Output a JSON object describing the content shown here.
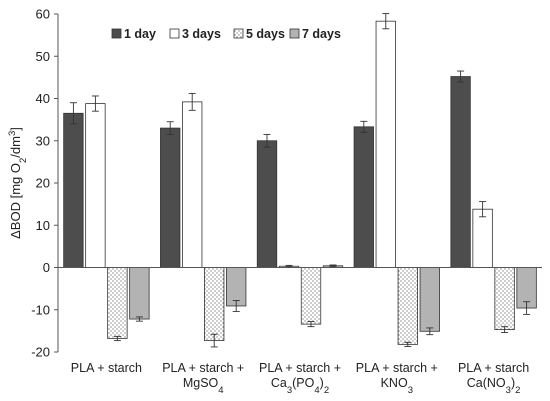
{
  "chart_data": {
    "type": "bar",
    "categories": [
      [
        "PLA + starch"
      ],
      [
        "PLA + starch +",
        "MgSO4"
      ],
      [
        "PLA + starch +",
        "Ca3(PO4)2"
      ],
      [
        "PLA + starch +",
        "KNO3"
      ],
      [
        "PLA + starch",
        "Ca(NO3)2"
      ]
    ],
    "series": [
      {
        "name": "1 day",
        "values": [
          36.5,
          33.0,
          30.0,
          33.3,
          45.2
        ],
        "errors": [
          2.5,
          1.5,
          1.5,
          1.3,
          1.3
        ],
        "color": "#4d4d4d",
        "pattern": "solid"
      },
      {
        "name": "3 days",
        "values": [
          38.8,
          39.2,
          0.3,
          58.3,
          13.8
        ],
        "errors": [
          1.8,
          2.0,
          0.2,
          1.8,
          1.8
        ],
        "color": "#ffffff",
        "pattern": "open"
      },
      {
        "name": "5 days",
        "values": [
          -16.8,
          -17.3,
          -13.4,
          -18.2,
          -14.7
        ],
        "errors": [
          0.5,
          1.5,
          0.6,
          0.5,
          0.7
        ],
        "color": "#ffffff",
        "pattern": "dots"
      },
      {
        "name": "7 days",
        "values": [
          -12.2,
          -9.1,
          0.4,
          -15.1,
          -9.6
        ],
        "errors": [
          0.5,
          1.3,
          0.2,
          0.8,
          1.5
        ],
        "color": "#b3b3b3",
        "pattern": "solid"
      }
    ],
    "ylabel": "ΔBOD [mg O2/dm3]",
    "ylim": [
      -20,
      60
    ],
    "yticks": [
      -20,
      -10,
      0,
      10,
      20,
      30,
      40,
      50,
      60
    ],
    "legend_position": "top-center",
    "grid": false
  }
}
